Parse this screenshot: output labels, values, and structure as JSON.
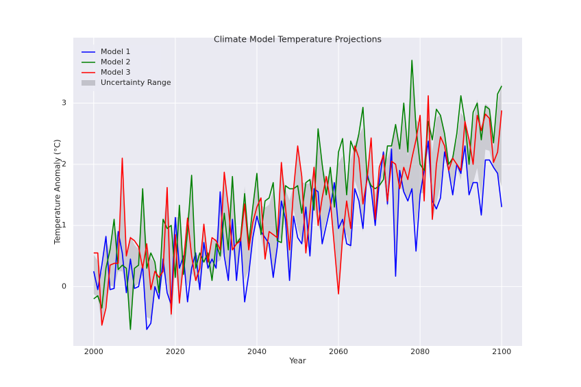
{
  "chart_data": {
    "type": "line",
    "title": "Climate Model Temperature Projections",
    "xlabel": "Year",
    "ylabel": "Temperature Anomaly (°C)",
    "x": [
      2000,
      2001,
      2002,
      2003,
      2004,
      2005,
      2006,
      2007,
      2008,
      2009,
      2010,
      2011,
      2012,
      2013,
      2014,
      2015,
      2016,
      2017,
      2018,
      2019,
      2020,
      2021,
      2022,
      2023,
      2024,
      2025,
      2026,
      2027,
      2028,
      2029,
      2030,
      2031,
      2032,
      2033,
      2034,
      2035,
      2036,
      2037,
      2038,
      2039,
      2040,
      2041,
      2042,
      2043,
      2044,
      2045,
      2046,
      2047,
      2048,
      2049,
      2050,
      2051,
      2052,
      2053,
      2054,
      2055,
      2056,
      2057,
      2058,
      2059,
      2060,
      2061,
      2062,
      2063,
      2064,
      2065,
      2066,
      2067,
      2068,
      2069,
      2070,
      2071,
      2072,
      2073,
      2074,
      2075,
      2076,
      2077,
      2078,
      2079,
      2080,
      2081,
      2082,
      2083,
      2084,
      2085,
      2086,
      2087,
      2088,
      2089,
      2090,
      2091,
      2092,
      2093,
      2094,
      2095,
      2096,
      2097,
      2098,
      2099,
      2100
    ],
    "series": [
      {
        "name": "Model 1",
        "color": "#0000ff",
        "values": [
          0.25,
          -0.05,
          0.35,
          0.82,
          -0.05,
          -0.03,
          0.9,
          0.55,
          -0.1,
          0.45,
          -0.03,
          0.0,
          0.35,
          -0.7,
          -0.6,
          0.0,
          -0.2,
          0.45,
          -0.1,
          -0.3,
          1.13,
          0.3,
          0.5,
          -0.25,
          0.3,
          0.55,
          -0.05,
          0.72,
          0.3,
          0.45,
          0.3,
          1.55,
          0.5,
          0.1,
          1.1,
          0.1,
          0.8,
          -0.25,
          0.2,
          0.8,
          1.15,
          0.9,
          0.8,
          0.7,
          0.15,
          0.65,
          1.4,
          1.1,
          0.1,
          1.15,
          0.8,
          0.7,
          1.3,
          0.5,
          1.6,
          1.55,
          0.7,
          1.0,
          1.3,
          1.7,
          0.95,
          1.1,
          0.7,
          0.67,
          1.6,
          1.4,
          0.95,
          1.85,
          1.6,
          1.0,
          1.7,
          2.2,
          1.35,
          2.25,
          0.17,
          1.9,
          1.55,
          1.4,
          1.6,
          0.58,
          1.5,
          1.9,
          2.38,
          1.4,
          1.27,
          1.45,
          2.2,
          1.9,
          1.5,
          2.0,
          1.85,
          2.3,
          1.5,
          1.7,
          1.7,
          1.17,
          2.07,
          2.07,
          1.95,
          1.85,
          1.3
        ]
      },
      {
        "name": "Model 2",
        "color": "#008000",
        "values": [
          -0.2,
          -0.15,
          -0.35,
          0.3,
          0.6,
          1.1,
          0.28,
          0.35,
          0.3,
          -0.7,
          0.3,
          0.35,
          1.6,
          0.3,
          0.55,
          0.4,
          -0.1,
          1.1,
          0.95,
          1.0,
          0.15,
          1.33,
          0.2,
          0.9,
          1.82,
          0.3,
          0.55,
          0.4,
          0.55,
          0.1,
          0.7,
          0.5,
          1.2,
          0.6,
          1.8,
          0.7,
          0.8,
          1.52,
          0.7,
          1.3,
          1.85,
          0.85,
          1.4,
          1.45,
          1.7,
          0.75,
          0.72,
          1.65,
          1.6,
          1.6,
          1.65,
          1.2,
          1.7,
          1.75,
          1.25,
          2.58,
          2.0,
          1.5,
          1.95,
          1.3,
          2.2,
          2.42,
          1.5,
          2.38,
          2.2,
          2.5,
          2.93,
          1.8,
          1.65,
          1.6,
          1.65,
          1.75,
          2.3,
          2.3,
          2.65,
          2.25,
          3.0,
          2.2,
          3.7,
          2.6,
          2.0,
          1.9,
          2.7,
          2.4,
          2.9,
          2.8,
          2.5,
          2.0,
          2.1,
          2.5,
          3.12,
          2.7,
          2.0,
          2.85,
          3.0,
          2.4,
          2.95,
          2.9,
          2.35,
          3.15,
          3.28
        ]
      },
      {
        "name": "Model 3",
        "color": "#ff0000",
        "values": [
          0.55,
          0.55,
          -0.63,
          -0.35,
          0.35,
          0.38,
          0.38,
          2.1,
          0.5,
          0.8,
          0.75,
          0.65,
          0.3,
          0.7,
          -0.05,
          0.25,
          0.15,
          0.25,
          1.62,
          -0.45,
          0.85,
          -0.27,
          0.4,
          1.12,
          0.5,
          0.1,
          0.3,
          1.02,
          0.4,
          0.8,
          0.75,
          0.6,
          1.87,
          1.3,
          0.6,
          0.7,
          0.75,
          1.35,
          0.6,
          1.05,
          1.3,
          1.45,
          0.45,
          0.9,
          0.85,
          0.8,
          2.03,
          1.3,
          0.6,
          1.6,
          2.3,
          1.8,
          0.55,
          1.2,
          1.95,
          1.0,
          1.45,
          1.8,
          1.4,
          0.65,
          -0.12,
          0.8,
          1.4,
          0.95,
          2.3,
          2.1,
          1.35,
          1.75,
          2.43,
          1.1,
          1.95,
          2.15,
          1.4,
          2.05,
          2.0,
          1.6,
          1.95,
          1.75,
          2.1,
          2.4,
          2.8,
          1.4,
          3.12,
          1.1,
          2.0,
          2.45,
          2.3,
          1.9,
          2.1,
          2.0,
          1.9,
          2.7,
          2.4,
          2.0,
          2.8,
          2.55,
          2.82,
          2.75,
          2.03,
          2.2,
          2.88
        ]
      }
    ],
    "band": {
      "name": "Uncertainty Range",
      "color": "#b0b0b8",
      "lower": [
        -0.12,
        -0.18,
        -0.63,
        -0.24,
        0.02,
        -0.01,
        0.25,
        0.25,
        -0.03,
        -0.46,
        0.0,
        0.05,
        0.19,
        -0.5,
        -0.53,
        0.05,
        -0.2,
        0.23,
        0.08,
        -0.54,
        0.29,
        -0.24,
        0.24,
        0.0,
        0.22,
        0.12,
        0.01,
        0.45,
        0.31,
        0.15,
        0.39,
        0.43,
        0.6,
        0.15,
        0.65,
        0.24,
        0.76,
        0.11,
        0.28,
        0.83,
        1.13,
        0.81,
        0.47,
        0.69,
        0.23,
        0.67,
        0.82,
        1.11,
        0.12,
        1.26,
        0.94,
        0.76,
        0.69,
        0.61,
        1.3,
        1.03,
        0.82,
        1.09,
        1.27,
        0.77,
        0.01,
        0.74,
        0.86,
        0.6,
        1.73,
        1.53,
        0.89,
        1.76,
        1.54,
        0.98,
        1.64,
        1.84,
        1.28,
        2.09,
        0.54,
        1.64,
        1.54,
        1.44,
        1.56,
        0.99,
        1.54,
        1.52,
        2.42,
        1.07,
        1.36,
        1.65,
        2.2,
        1.89,
        1.64,
        1.95,
        1.74,
        2.39,
        1.58,
        1.69,
        1.94,
        1.45,
        2.24,
        2.22,
        1.94,
        1.84,
        1.64
      ],
      "upper": [
        0.52,
        0.42,
        0.21,
        0.76,
        0.58,
        0.97,
        0.79,
        1.75,
        0.49,
        0.83,
        0.68,
        0.61,
        1.31,
        0.7,
        0.46,
        0.39,
        0.1,
        0.97,
        1.56,
        0.71,
        1.13,
        1.14,
        0.5,
        1.18,
        1.53,
        0.51,
        0.53,
        0.98,
        0.52,
        0.75,
        0.78,
        1.33,
        1.78,
        1.18,
        1.68,
        0.76,
        0.81,
        1.64,
        0.72,
        1.27,
        1.73,
        1.33,
        1.29,
        1.34,
        1.57,
        0.8,
        1.95,
        1.59,
        1.41,
        1.64,
        2.23,
        1.71,
        1.68,
        1.69,
        1.9,
        2.39,
        1.94,
        1.78,
        1.83,
        1.67,
        2.01,
        2.14,
        1.54,
        2.07,
        2.33,
        2.47,
        2.6,
        1.84,
        2.25,
        1.49,
        1.9,
        2.23,
        2.09,
        2.31,
        2.67,
        2.2,
        2.79,
        2.13,
        3.37,
        2.73,
        2.66,
        1.95,
        3.05,
        2.19,
        2.76,
        2.81,
        2.46,
        1.98,
        2.16,
        2.38,
        2.84,
        2.74,
        2.35,
        2.68,
        3.06,
        2.63,
        2.99,
        2.93,
        2.28,
        2.96,
        3.34
      ]
    },
    "xlim": [
      1995,
      2105
    ],
    "ylim": [
      -0.97,
      4.07
    ],
    "xticks": [
      2000,
      2020,
      2040,
      2060,
      2080,
      2100
    ],
    "yticks": [
      0,
      1,
      2,
      3
    ],
    "grid": true,
    "legend": "upper left"
  }
}
